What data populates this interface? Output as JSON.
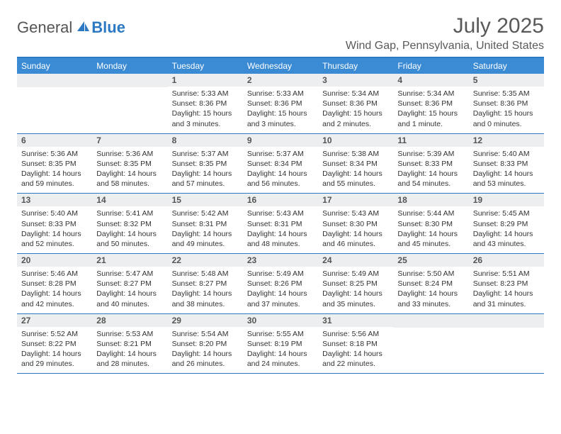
{
  "brand": {
    "part1": "General",
    "part2": "Blue"
  },
  "title": "July 2025",
  "location": "Wind Gap, Pennsylvania, United States",
  "colors": {
    "header_bg": "#3b8bd4",
    "border": "#2b79c2",
    "daynum_bg": "#eceeef",
    "text": "#333333",
    "title_text": "#595959",
    "white": "#ffffff"
  },
  "typography": {
    "title_fontsize": 30,
    "location_fontsize": 16,
    "dayheader_fontsize": 12,
    "daynum_fontsize": 12,
    "details_fontsize": 10.5
  },
  "day_names": [
    "Sunday",
    "Monday",
    "Tuesday",
    "Wednesday",
    "Thursday",
    "Friday",
    "Saturday"
  ],
  "weeks": [
    [
      null,
      null,
      {
        "n": "1",
        "sr": "5:33 AM",
        "ss": "8:36 PM",
        "dl": "15 hours and 3 minutes."
      },
      {
        "n": "2",
        "sr": "5:33 AM",
        "ss": "8:36 PM",
        "dl": "15 hours and 3 minutes."
      },
      {
        "n": "3",
        "sr": "5:34 AM",
        "ss": "8:36 PM",
        "dl": "15 hours and 2 minutes."
      },
      {
        "n": "4",
        "sr": "5:34 AM",
        "ss": "8:36 PM",
        "dl": "15 hours and 1 minute."
      },
      {
        "n": "5",
        "sr": "5:35 AM",
        "ss": "8:36 PM",
        "dl": "15 hours and 0 minutes."
      }
    ],
    [
      {
        "n": "6",
        "sr": "5:36 AM",
        "ss": "8:35 PM",
        "dl": "14 hours and 59 minutes."
      },
      {
        "n": "7",
        "sr": "5:36 AM",
        "ss": "8:35 PM",
        "dl": "14 hours and 58 minutes."
      },
      {
        "n": "8",
        "sr": "5:37 AM",
        "ss": "8:35 PM",
        "dl": "14 hours and 57 minutes."
      },
      {
        "n": "9",
        "sr": "5:37 AM",
        "ss": "8:34 PM",
        "dl": "14 hours and 56 minutes."
      },
      {
        "n": "10",
        "sr": "5:38 AM",
        "ss": "8:34 PM",
        "dl": "14 hours and 55 minutes."
      },
      {
        "n": "11",
        "sr": "5:39 AM",
        "ss": "8:33 PM",
        "dl": "14 hours and 54 minutes."
      },
      {
        "n": "12",
        "sr": "5:40 AM",
        "ss": "8:33 PM",
        "dl": "14 hours and 53 minutes."
      }
    ],
    [
      {
        "n": "13",
        "sr": "5:40 AM",
        "ss": "8:33 PM",
        "dl": "14 hours and 52 minutes."
      },
      {
        "n": "14",
        "sr": "5:41 AM",
        "ss": "8:32 PM",
        "dl": "14 hours and 50 minutes."
      },
      {
        "n": "15",
        "sr": "5:42 AM",
        "ss": "8:31 PM",
        "dl": "14 hours and 49 minutes."
      },
      {
        "n": "16",
        "sr": "5:43 AM",
        "ss": "8:31 PM",
        "dl": "14 hours and 48 minutes."
      },
      {
        "n": "17",
        "sr": "5:43 AM",
        "ss": "8:30 PM",
        "dl": "14 hours and 46 minutes."
      },
      {
        "n": "18",
        "sr": "5:44 AM",
        "ss": "8:30 PM",
        "dl": "14 hours and 45 minutes."
      },
      {
        "n": "19",
        "sr": "5:45 AM",
        "ss": "8:29 PM",
        "dl": "14 hours and 43 minutes."
      }
    ],
    [
      {
        "n": "20",
        "sr": "5:46 AM",
        "ss": "8:28 PM",
        "dl": "14 hours and 42 minutes."
      },
      {
        "n": "21",
        "sr": "5:47 AM",
        "ss": "8:27 PM",
        "dl": "14 hours and 40 minutes."
      },
      {
        "n": "22",
        "sr": "5:48 AM",
        "ss": "8:27 PM",
        "dl": "14 hours and 38 minutes."
      },
      {
        "n": "23",
        "sr": "5:49 AM",
        "ss": "8:26 PM",
        "dl": "14 hours and 37 minutes."
      },
      {
        "n": "24",
        "sr": "5:49 AM",
        "ss": "8:25 PM",
        "dl": "14 hours and 35 minutes."
      },
      {
        "n": "25",
        "sr": "5:50 AM",
        "ss": "8:24 PM",
        "dl": "14 hours and 33 minutes."
      },
      {
        "n": "26",
        "sr": "5:51 AM",
        "ss": "8:23 PM",
        "dl": "14 hours and 31 minutes."
      }
    ],
    [
      {
        "n": "27",
        "sr": "5:52 AM",
        "ss": "8:22 PM",
        "dl": "14 hours and 29 minutes."
      },
      {
        "n": "28",
        "sr": "5:53 AM",
        "ss": "8:21 PM",
        "dl": "14 hours and 28 minutes."
      },
      {
        "n": "29",
        "sr": "5:54 AM",
        "ss": "8:20 PM",
        "dl": "14 hours and 26 minutes."
      },
      {
        "n": "30",
        "sr": "5:55 AM",
        "ss": "8:19 PM",
        "dl": "14 hours and 24 minutes."
      },
      {
        "n": "31",
        "sr": "5:56 AM",
        "ss": "8:18 PM",
        "dl": "14 hours and 22 minutes."
      },
      null,
      null
    ]
  ],
  "labels": {
    "sunrise": "Sunrise:",
    "sunset": "Sunset:",
    "daylight": "Daylight:"
  }
}
